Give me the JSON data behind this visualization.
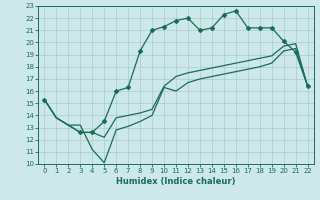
{
  "title": "",
  "xlabel": "Humidex (Indice chaleur)",
  "bg_color": "#cce8e8",
  "line_color": "#1a6b5a",
  "grid_color": "#aacccc",
  "xlim": [
    -0.5,
    22.5
  ],
  "ylim": [
    10,
    23
  ],
  "xticks": [
    0,
    1,
    2,
    3,
    4,
    5,
    6,
    7,
    8,
    9,
    10,
    11,
    12,
    13,
    14,
    15,
    16,
    17,
    18,
    19,
    20,
    21,
    22
  ],
  "yticks": [
    10,
    11,
    12,
    13,
    14,
    15,
    16,
    17,
    18,
    19,
    20,
    21,
    22,
    23
  ],
  "line1_x": [
    0,
    1,
    2,
    3,
    4,
    5,
    6,
    7,
    8,
    9,
    10,
    11,
    12,
    13,
    14,
    15,
    16,
    17,
    18,
    19,
    20,
    21,
    22
  ],
  "line1_y": [
    15.3,
    13.8,
    13.2,
    13.2,
    11.2,
    10.1,
    12.8,
    13.1,
    13.5,
    14.0,
    16.3,
    16.0,
    16.7,
    17.0,
    17.2,
    17.4,
    17.6,
    17.8,
    18.0,
    18.3,
    19.3,
    19.5,
    16.4
  ],
  "line2_x": [
    0,
    1,
    2,
    3,
    4,
    5,
    6,
    7,
    8,
    9,
    10,
    11,
    12,
    13,
    14,
    15,
    16,
    17,
    18,
    19,
    20,
    21,
    22
  ],
  "line2_y": [
    15.3,
    13.8,
    13.2,
    12.6,
    12.6,
    13.5,
    16.0,
    16.3,
    19.3,
    21.0,
    21.3,
    21.8,
    22.0,
    21.0,
    21.2,
    22.3,
    22.6,
    21.2,
    21.2,
    21.2,
    20.1,
    19.2,
    16.4
  ],
  "line3_x": [
    0,
    1,
    2,
    3,
    4,
    5,
    6,
    7,
    8,
    9,
    10,
    11,
    12,
    13,
    14,
    15,
    16,
    17,
    18,
    19,
    20,
    21,
    22
  ],
  "line3_y": [
    15.3,
    13.8,
    13.2,
    12.6,
    12.6,
    12.2,
    13.8,
    14.0,
    14.2,
    14.5,
    16.4,
    17.2,
    17.5,
    17.7,
    17.9,
    18.1,
    18.3,
    18.5,
    18.7,
    18.9,
    19.7,
    19.9,
    16.4
  ],
  "marker2_x": [
    0,
    3,
    4,
    5,
    6,
    7,
    8,
    9,
    10,
    11,
    12,
    13,
    14,
    15,
    16,
    17,
    18,
    19,
    20,
    21,
    22
  ],
  "marker2_y": [
    15.3,
    12.6,
    12.6,
    13.5,
    16.0,
    16.3,
    19.3,
    21.0,
    21.3,
    21.8,
    22.0,
    21.0,
    21.2,
    22.3,
    22.6,
    21.2,
    21.2,
    21.2,
    20.1,
    19.2,
    16.4
  ]
}
